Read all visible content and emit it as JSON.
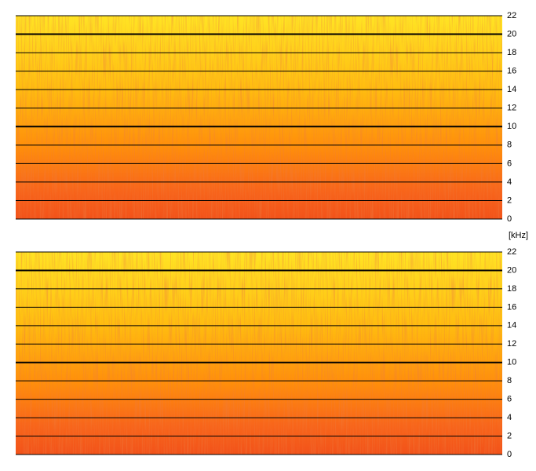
{
  "chart_data": [
    {
      "type": "spectrogram",
      "y_label": "[kHz]",
      "ylim": [
        0,
        22
      ],
      "yticks": [
        0,
        2,
        4,
        6,
        8,
        10,
        12,
        14,
        16,
        18,
        20,
        22
      ],
      "major_yticks": [
        10,
        20
      ],
      "grid": true
    },
    {
      "type": "spectrogram",
      "ylim": [
        0,
        22
      ],
      "yticks": [
        0,
        2,
        4,
        6,
        8,
        10,
        12,
        14,
        16,
        18,
        20,
        22
      ],
      "major_yticks": [
        10,
        20
      ],
      "grid": true
    }
  ]
}
